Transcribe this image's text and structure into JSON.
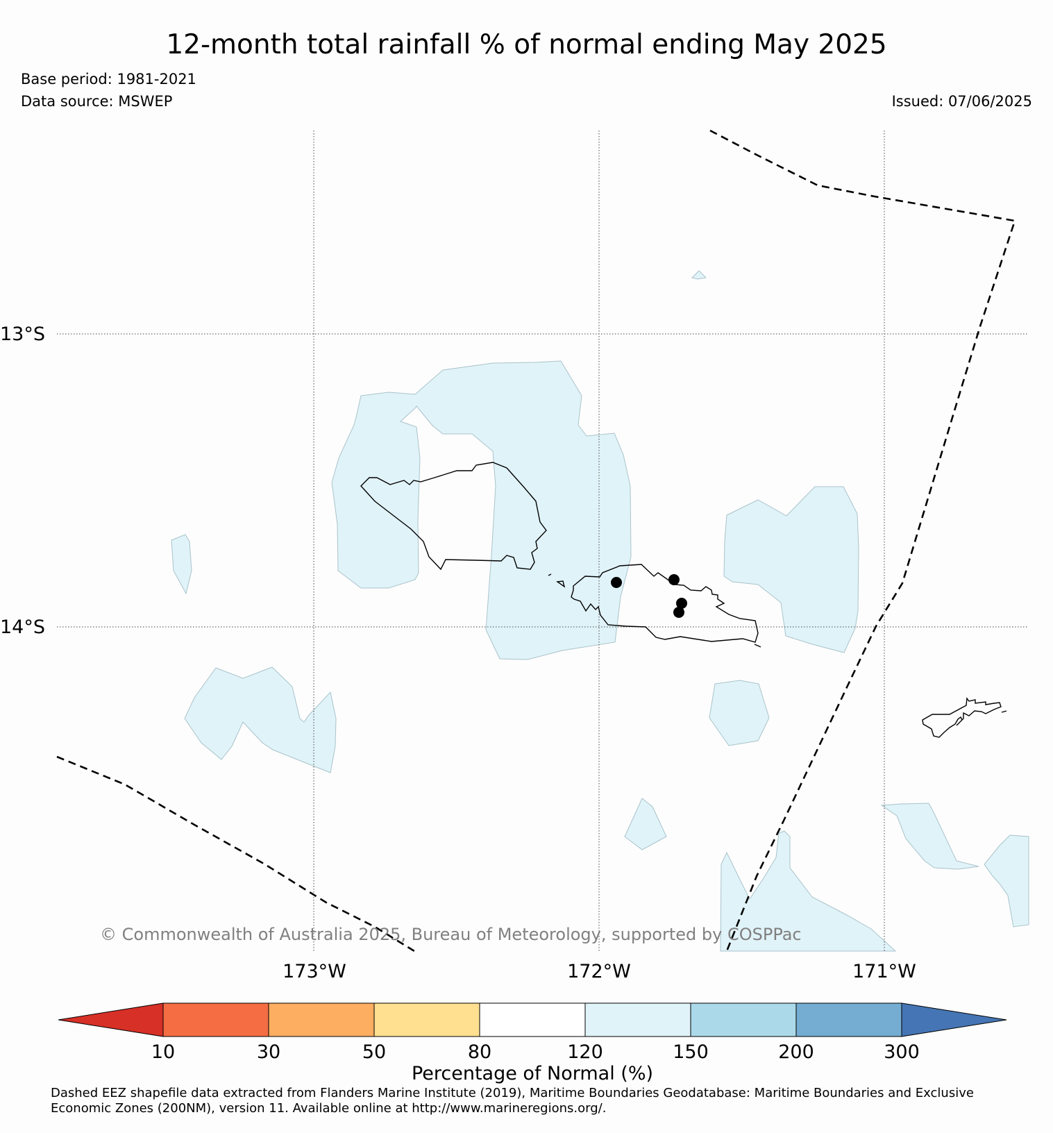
{
  "header": {
    "title": "12-month total rainfall % of normal ending May 2025",
    "base_period": "Base period: 1981-2021",
    "data_source": "Data source: MSWEP",
    "issued": "Issued: 07/06/2025"
  },
  "map": {
    "lat_labels": [
      "13°S",
      "14°S"
    ],
    "lon_labels": [
      "173°W",
      "172°W",
      "171°W"
    ],
    "copyright": "© Commonwealth of Australia 2025, Bureau of Meteorology, supported by COSPPac",
    "stations": 4
  },
  "legend": {
    "title": "Percentage of Normal (%)",
    "ticks": [
      "10",
      "30",
      "50",
      "80",
      "120",
      "150",
      "200",
      "300"
    ],
    "colors": [
      "#d73027",
      "#f46d43",
      "#fdae61",
      "#fee090",
      "#ffffff",
      "#e0f3f8",
      "#abd9e9",
      "#74add1",
      "#4575b4"
    ],
    "highlight_fill": "#e0f3f8"
  },
  "footer": {
    "note": "Dashed EEZ shapefile data extracted from Flanders Marine Institute (2019), Maritime Boundaries Geodatabase: Maritime Boundaries and Exclusive Economic Zones (200NM), version 11. Available online at http://www.marineregions.org/."
  }
}
